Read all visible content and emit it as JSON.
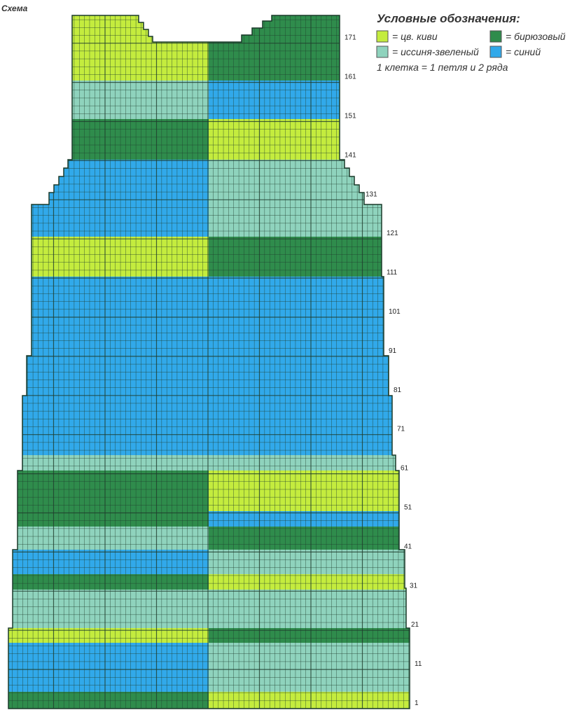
{
  "header": {
    "title": "Схема"
  },
  "legend": {
    "title": "Условные обозначения:",
    "items": [
      "= цв. киви",
      "= бирюзовый",
      "= иссиня-звеленый",
      "= синий"
    ],
    "note": "1 клетка = 1 петля и 2 ряда"
  },
  "row_labels": [
    "1",
    "11",
    "21",
    "31",
    "41",
    "51",
    "61",
    "71",
    "81",
    "91",
    "101",
    "111",
    "121",
    "131",
    "141",
    "151",
    "161",
    "171"
  ]
}
